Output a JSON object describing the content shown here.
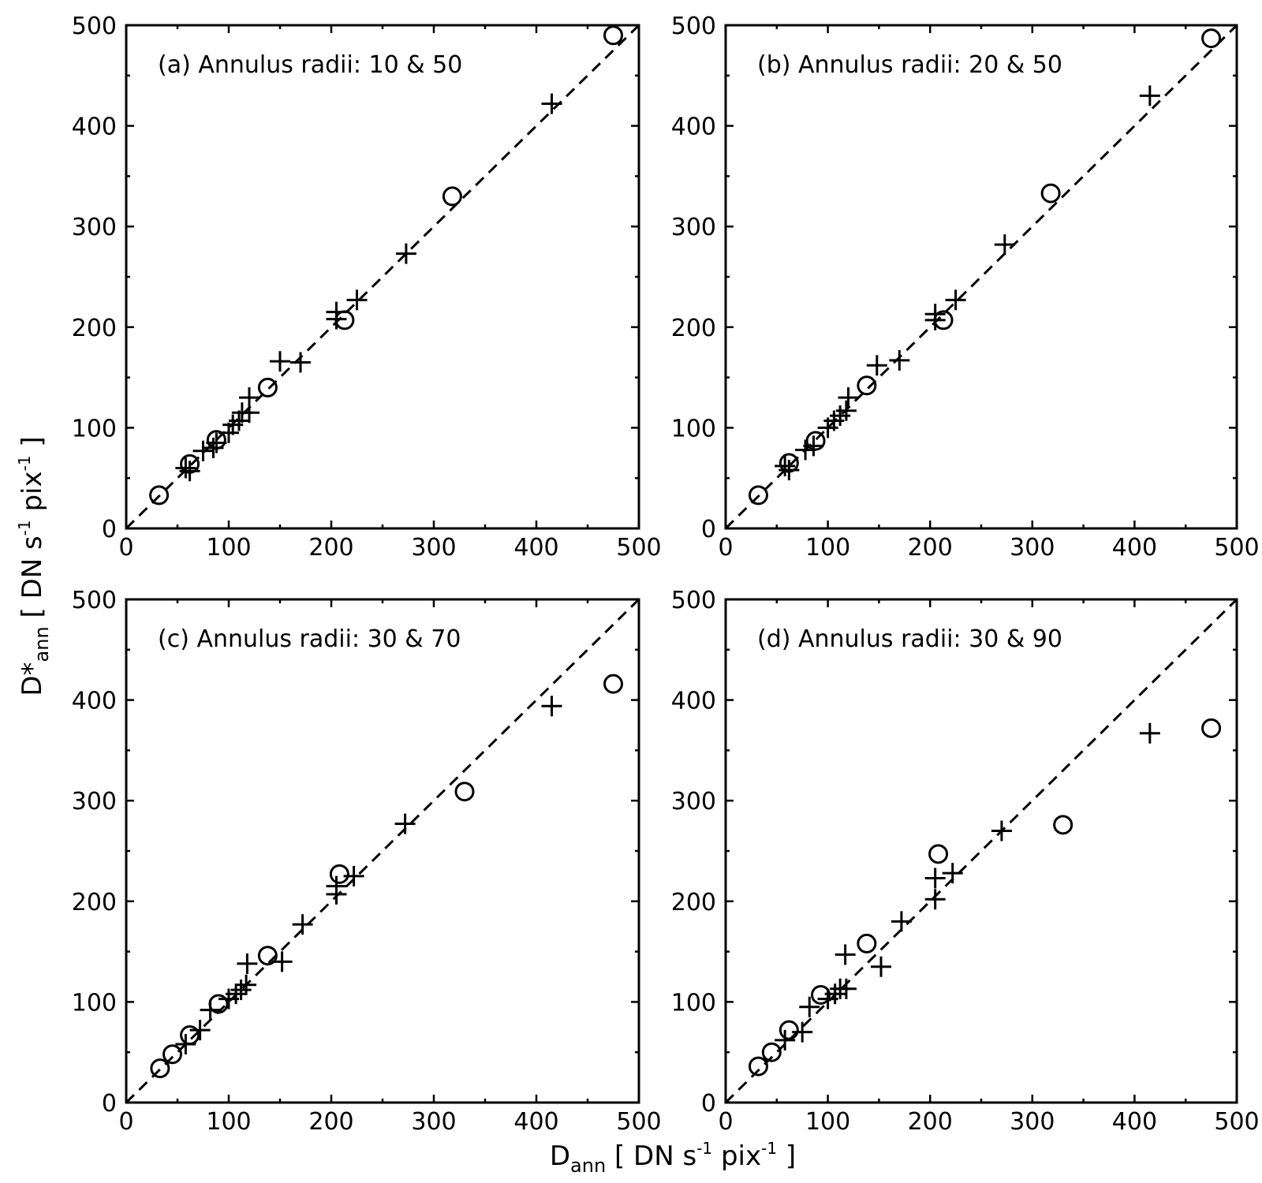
{
  "figure": {
    "xlabel": {
      "main": "D",
      "sub": "ann",
      "rest": " [ DN s",
      "sup1": "-1",
      "mid": " pix",
      "sup2": "-1",
      "end": " ]"
    },
    "ylabel": {
      "main": "D*",
      "sub": "ann",
      "rest": " [ DN s",
      "sup1": "-1",
      "mid": " pix",
      "sup2": "-1",
      "end": " ]"
    }
  },
  "chart_data": [
    {
      "type": "scatter",
      "title": "(a) Annulus radii: 10 & 50",
      "xlim": [
        0,
        500
      ],
      "ylim": [
        0,
        500
      ],
      "xticks": [
        "0",
        "100",
        "200",
        "300",
        "400",
        "500"
      ],
      "yticks": [
        "0",
        "100",
        "200",
        "300",
        "400",
        "500"
      ],
      "grid": false,
      "reference_line": {
        "style": "dashed",
        "from": [
          0,
          0
        ],
        "to": [
          500,
          500
        ]
      },
      "series": [
        {
          "marker": "circle",
          "points": [
            [
              32,
              33
            ],
            [
              62,
              64
            ],
            [
              88,
              88
            ],
            [
              138,
              140
            ],
            [
              213,
              207
            ],
            [
              318,
              330
            ],
            [
              475,
              490
            ]
          ]
        },
        {
          "marker": "plus",
          "points": [
            [
              58,
              60
            ],
            [
              62,
              57
            ],
            [
              75,
              77
            ],
            [
              85,
              80
            ],
            [
              88,
              85
            ],
            [
              100,
              95
            ],
            [
              104,
              103
            ],
            [
              110,
              107
            ],
            [
              113,
              115
            ],
            [
              120,
              115
            ],
            [
              120,
              130
            ],
            [
              150,
              166
            ],
            [
              170,
              165
            ],
            [
              205,
              208
            ],
            [
              205,
              215
            ],
            [
              225,
              227
            ],
            [
              273,
              273
            ],
            [
              415,
              422
            ]
          ]
        }
      ]
    },
    {
      "type": "scatter",
      "title": "(b) Annulus radii: 20 & 50",
      "xlim": [
        0,
        500
      ],
      "ylim": [
        0,
        500
      ],
      "xticks": [
        "0",
        "100",
        "200",
        "300",
        "400",
        "500"
      ],
      "yticks": [
        "0",
        "100",
        "200",
        "300",
        "400",
        "500"
      ],
      "grid": false,
      "reference_line": {
        "style": "dashed",
        "from": [
          0,
          0
        ],
        "to": [
          500,
          500
        ]
      },
      "series": [
        {
          "marker": "circle",
          "points": [
            [
              32,
              33
            ],
            [
              62,
              65
            ],
            [
              88,
              87
            ],
            [
              138,
              142
            ],
            [
              213,
              207
            ],
            [
              318,
              333
            ],
            [
              475,
              487
            ]
          ]
        },
        {
          "marker": "plus",
          "points": [
            [
              58,
              62
            ],
            [
              62,
              58
            ],
            [
              78,
              78
            ],
            [
              86,
              82
            ],
            [
              100,
              100
            ],
            [
              106,
              107
            ],
            [
              112,
              112
            ],
            [
              118,
              117
            ],
            [
              120,
              130
            ],
            [
              148,
              162
            ],
            [
              170,
              167
            ],
            [
              205,
              213
            ],
            [
              205,
              207
            ],
            [
              225,
              227
            ],
            [
              273,
              282
            ],
            [
              415,
              430
            ]
          ]
        }
      ]
    },
    {
      "type": "scatter",
      "title": "(c) Annulus radii: 30 & 70",
      "xlim": [
        0,
        500
      ],
      "ylim": [
        0,
        500
      ],
      "xticks": [
        "0",
        "100",
        "200",
        "300",
        "400",
        "500"
      ],
      "yticks": [
        "0",
        "100",
        "200",
        "300",
        "400",
        "500"
      ],
      "grid": false,
      "reference_line": {
        "style": "dashed",
        "from": [
          0,
          0
        ],
        "to": [
          500,
          500
        ]
      },
      "series": [
        {
          "marker": "circle",
          "points": [
            [
              33,
              34
            ],
            [
              45,
              48
            ],
            [
              62,
              67
            ],
            [
              90,
              98
            ],
            [
              138,
              146
            ],
            [
              208,
              227
            ],
            [
              330,
              309
            ],
            [
              475,
              416
            ]
          ]
        },
        {
          "marker": "plus",
          "points": [
            [
              58,
              58
            ],
            [
              72,
              72
            ],
            [
              82,
              92
            ],
            [
              100,
              103
            ],
            [
              107,
              108
            ],
            [
              112,
              112
            ],
            [
              117,
              117
            ],
            [
              118,
              138
            ],
            [
              152,
              140
            ],
            [
              172,
              177
            ],
            [
              205,
              207
            ],
            [
              205,
              215
            ],
            [
              222,
              225
            ],
            [
              272,
              277
            ],
            [
              415,
              394
            ]
          ]
        }
      ]
    },
    {
      "type": "scatter",
      "title": "(d) Annulus radii: 30 & 90",
      "xlim": [
        0,
        500
      ],
      "ylim": [
        0,
        500
      ],
      "xticks": [
        "0",
        "100",
        "200",
        "300",
        "400",
        "500"
      ],
      "yticks": [
        "0",
        "100",
        "200",
        "300",
        "400",
        "500"
      ],
      "grid": false,
      "reference_line": {
        "style": "dashed",
        "from": [
          0,
          0
        ],
        "to": [
          500,
          500
        ]
      },
      "series": [
        {
          "marker": "circle",
          "points": [
            [
              32,
              36
            ],
            [
              45,
              50
            ],
            [
              62,
              72
            ],
            [
              93,
              107
            ],
            [
              138,
              158
            ],
            [
              208,
              247
            ],
            [
              330,
              276
            ],
            [
              475,
              372
            ]
          ]
        },
        {
          "marker": "plus",
          "points": [
            [
              58,
              62
            ],
            [
              75,
              70
            ],
            [
              82,
              95
            ],
            [
              100,
              103
            ],
            [
              107,
              108
            ],
            [
              112,
              113
            ],
            [
              118,
              113
            ],
            [
              117,
              147
            ],
            [
              152,
              135
            ],
            [
              172,
              180
            ],
            [
              205,
              202
            ],
            [
              205,
              223
            ],
            [
              222,
              228
            ],
            [
              270,
              270
            ],
            [
              415,
              367
            ]
          ]
        }
      ]
    }
  ]
}
